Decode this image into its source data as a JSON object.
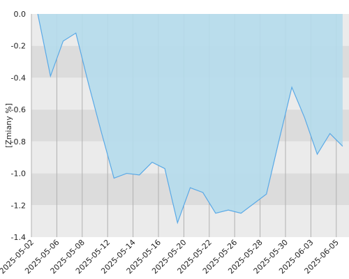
{
  "chart_data": {
    "type": "area",
    "y_label": "[Zmiany %]",
    "categories": [
      "2025-05-02",
      null,
      "2025-05-06",
      null,
      "2025-05-08",
      null,
      "2025-05-12",
      null,
      "2025-05-14",
      null,
      "2025-05-16",
      null,
      "2025-05-20",
      null,
      "2025-05-22",
      null,
      "2025-05-26",
      null,
      "2025-05-28",
      null,
      "2025-05-30",
      null,
      "2025-06-03",
      null,
      "2025-06-05"
    ],
    "series": [
      {
        "color": "#5aa9e6",
        "fill": "#b5dbec",
        "values": [
          0.0,
          -0.39,
          -0.17,
          -0.12,
          -0.44,
          -0.74,
          -1.03,
          -1.0,
          -1.01,
          -0.93,
          -0.97,
          -1.31,
          -1.09,
          -1.12,
          -1.25,
          -1.23,
          -1.25,
          -1.19,
          -1.13,
          -0.79,
          -0.46,
          -0.65,
          -0.88,
          -0.75,
          -0.83
        ]
      }
    ],
    "ylim": [
      -1.4,
      0
    ],
    "yticks": [
      {
        "value": 0,
        "label": "0.0"
      },
      -0.2,
      -0.4,
      -0.6,
      -0.8,
      {
        "value": -1,
        "label": "-1.0"
      },
      -1.2,
      -1.4
    ],
    "band_colors": [
      "#ebebeb",
      "#dcdcdc"
    ],
    "grid": true
  }
}
